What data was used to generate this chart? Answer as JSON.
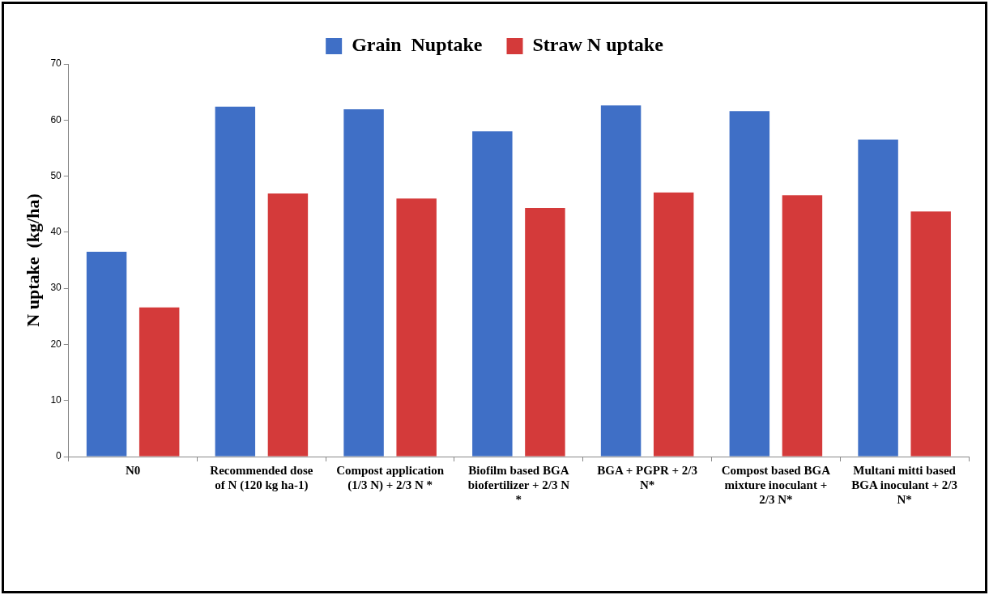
{
  "chart_data": {
    "type": "bar",
    "ylabel": "N uptake  (kg/ha)",
    "categories": [
      "N0",
      "Recommended dose of N (120 kg ha-1)",
      "Compost application (1/3 N) + 2/3 N *",
      "Biofilm based BGA biofertilizer + 2/3 N *",
      "BGA + PGPR + 2/3 N*",
      "Compost based BGA mixture inoculant + 2/3 N*",
      "Multani mitti based BGA inoculant + 2/3 N*"
    ],
    "series": [
      {
        "name": "Grain  Nuptake",
        "color": "#3f6fc6",
        "values": [
          36.5,
          62.4,
          61.9,
          58.0,
          62.6,
          61.6,
          56.5
        ]
      },
      {
        "name": "Straw N uptake",
        "color": "#d43a3a",
        "values": [
          26.6,
          46.9,
          46.0,
          44.3,
          47.1,
          46.6,
          43.7
        ]
      }
    ],
    "ylim": [
      0,
      70
    ],
    "yticks": [
      0,
      10,
      20,
      30,
      40,
      50,
      60,
      70
    ],
    "grid": false,
    "legend": "top"
  }
}
